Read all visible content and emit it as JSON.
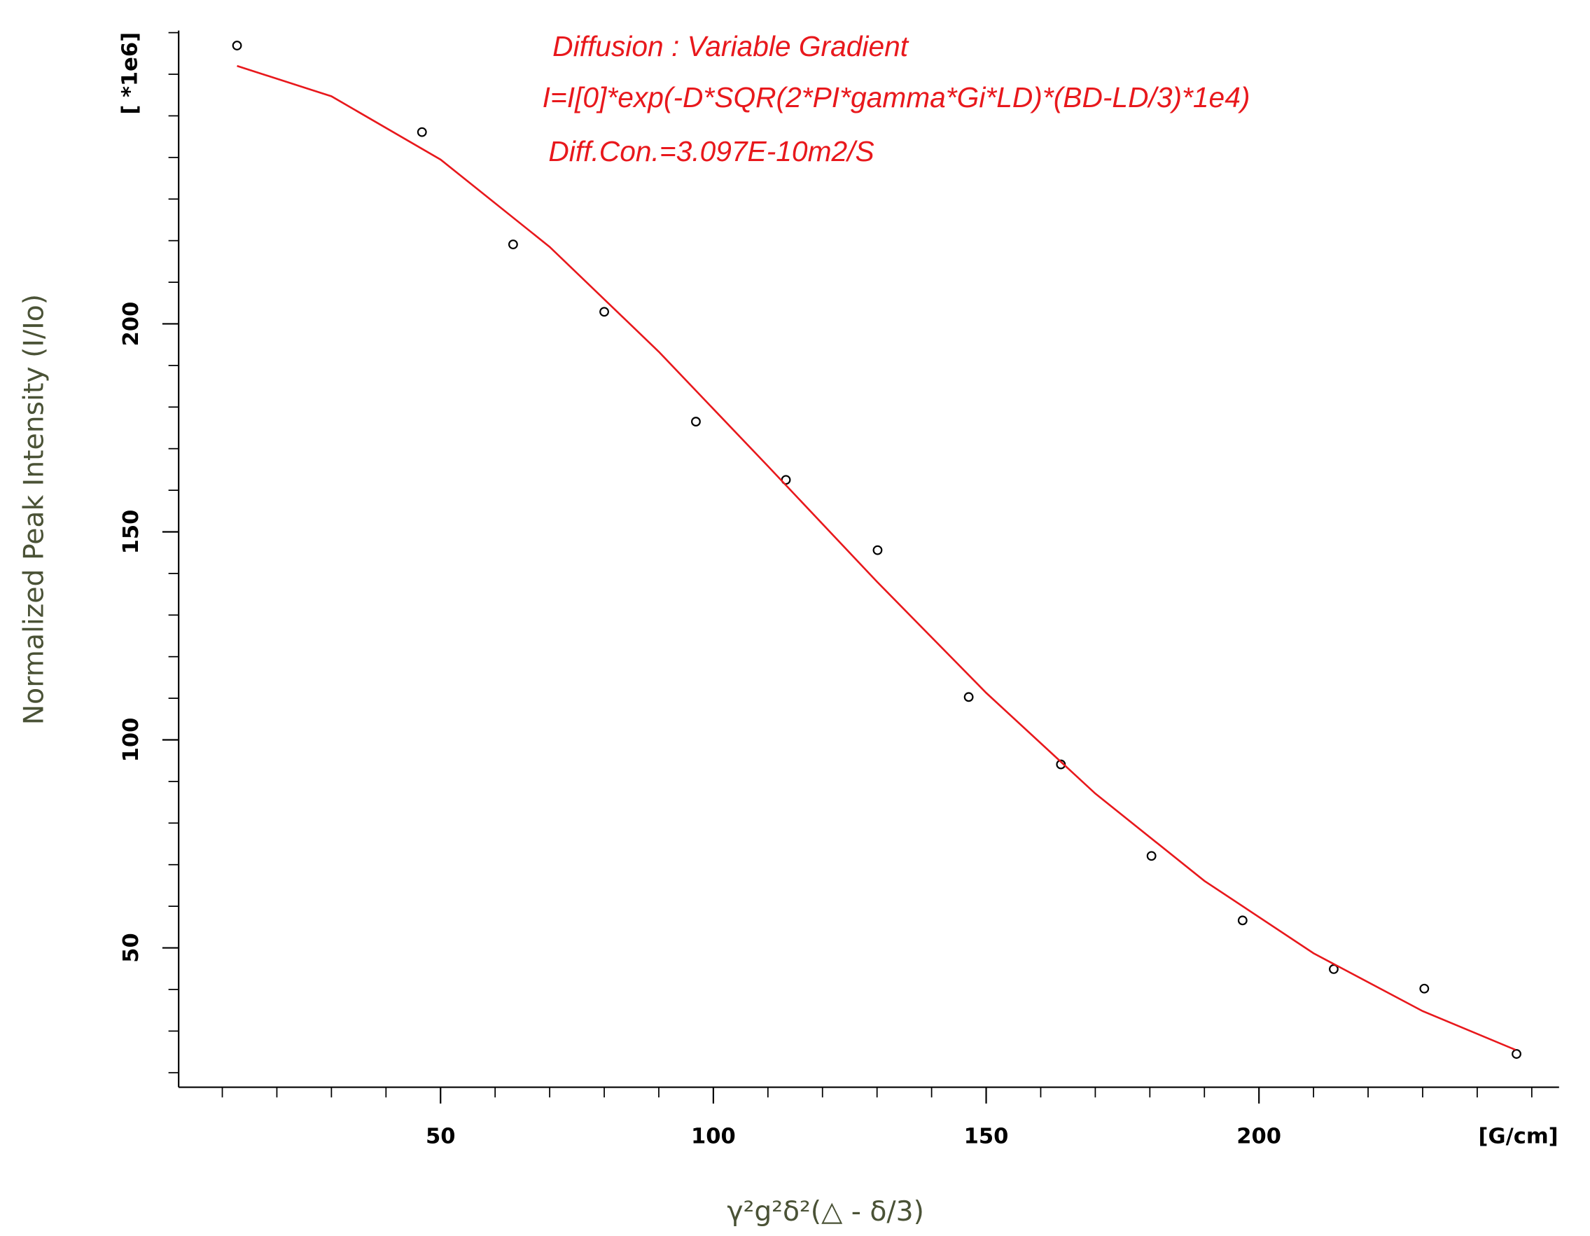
{
  "chart_data": {
    "type": "scatter",
    "annotations": [
      "Diffusion : Variable Gradient",
      "I=I[0]*exp(-D*SQR(2*PI*gamma*Gi*LD)*(BD-LD/3)*1e4)",
      "Diff.Con.=3.097E-10m2/S"
    ],
    "xlabel": "γ²g²δ²(△ - δ/3)",
    "ylabel": "Normalized Peak Intensity (I/Io)",
    "xunit": "[G/cm]",
    "yunit": "[ *1e6]",
    "xlim": [
      2,
      255
    ],
    "ylim": [
      16.5,
      270.5
    ],
    "xticks": [
      50,
      100,
      150,
      200
    ],
    "yticks": [
      50,
      100,
      150,
      200
    ],
    "xminorticks": [
      10,
      20,
      30,
      40,
      60,
      70,
      80,
      90,
      110,
      120,
      130,
      140,
      160,
      170,
      180,
      190,
      210,
      220,
      230,
      240,
      250
    ],
    "yminorticks": [
      20,
      30,
      40,
      60,
      70,
      80,
      90,
      110,
      120,
      130,
      140,
      160,
      170,
      180,
      190,
      210,
      220,
      230,
      240,
      250,
      260,
      270
    ],
    "series": [
      {
        "type": "scatter",
        "color": "#000000",
        "x": [
          12.7,
          46.6,
          63.3,
          80.0,
          96.8,
          113.3,
          130.1,
          146.8,
          163.7,
          180.3,
          197.0,
          213.7,
          230.3,
          247.2
        ],
        "values": [
          266.9,
          246.1,
          219.1,
          202.9,
          176.5,
          162.5,
          145.6,
          110.3,
          94.1,
          72.1,
          56.6,
          44.9,
          40.2,
          24.5
        ]
      },
      {
        "type": "line",
        "color": "#e8181c",
        "x": [
          12.7,
          30,
          50,
          70,
          90,
          110,
          130,
          150,
          170,
          190,
          210,
          230,
          247
        ],
        "values": [
          262.0,
          254.7,
          239.5,
          218.5,
          193.3,
          165.8,
          138.0,
          111.3,
          87.1,
          66.1,
          48.7,
          34.8,
          25.5
        ]
      }
    ]
  }
}
